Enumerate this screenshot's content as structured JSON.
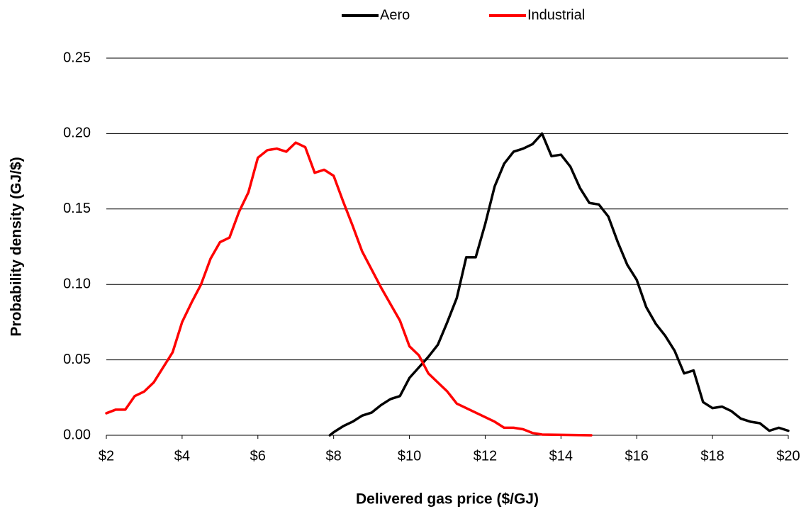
{
  "chart_data": {
    "type": "line",
    "xlabel": "Delivered gas price ($/GJ)",
    "ylabel": "Probability density (GJ/$)",
    "xlim": [
      2,
      20
    ],
    "ylim": [
      0,
      0.25
    ],
    "xticks": [
      {
        "value": 2,
        "label": "$2"
      },
      {
        "value": 4,
        "label": "$4"
      },
      {
        "value": 6,
        "label": "$6"
      },
      {
        "value": 8,
        "label": "$8"
      },
      {
        "value": 10,
        "label": "$10"
      },
      {
        "value": 12,
        "label": "$12"
      },
      {
        "value": 14,
        "label": "$14"
      },
      {
        "value": 16,
        "label": "$16"
      },
      {
        "value": 18,
        "label": "$18"
      },
      {
        "value": 20,
        "label": "$20"
      }
    ],
    "yticks": [
      {
        "value": 0,
        "label": "0.00"
      },
      {
        "value": 0.05,
        "label": "0.05"
      },
      {
        "value": 0.1,
        "label": "0.10"
      },
      {
        "value": 0.15,
        "label": "0.15"
      },
      {
        "value": 0.2,
        "label": "0.20"
      },
      {
        "value": 0.25,
        "label": "0.25"
      }
    ],
    "grid": true,
    "legend": "top",
    "series": [
      {
        "name": "Aero",
        "color": "#000000",
        "x": [
          7.9,
          8,
          8.25,
          8.5,
          8.75,
          9,
          9.25,
          9.5,
          9.75,
          10,
          10.25,
          10.5,
          10.75,
          11,
          11.25,
          11.5,
          11.75,
          12,
          12.25,
          12.5,
          12.75,
          13,
          13.25,
          13.5,
          13.75,
          14,
          14.25,
          14.5,
          14.75,
          15,
          15.25,
          15.5,
          15.75,
          16,
          16.25,
          16.5,
          16.75,
          17,
          17.25,
          17.5,
          17.75,
          18,
          18.25,
          18.5,
          18.75,
          19,
          19.25,
          19.5,
          19.75,
          20
        ],
        "values": [
          0,
          0.002,
          0.006,
          0.009,
          0.013,
          0.015,
          0.02,
          0.024,
          0.026,
          0.038,
          0.045,
          0.052,
          0.06,
          0.075,
          0.091,
          0.118,
          0.118,
          0.14,
          0.165,
          0.18,
          0.188,
          0.19,
          0.193,
          0.2,
          0.185,
          0.186,
          0.178,
          0.164,
          0.154,
          0.153,
          0.145,
          0.128,
          0.113,
          0.103,
          0.085,
          0.074,
          0.066,
          0.056,
          0.041,
          0.043,
          0.022,
          0.018,
          0.019,
          0.016,
          0.011,
          0.009,
          0.008,
          0.003,
          0.005,
          0.003
        ]
      },
      {
        "name": "Industrial",
        "color": "#ff0000",
        "x": [
          2,
          2.25,
          2.5,
          2.75,
          3,
          3.25,
          3.5,
          3.75,
          4,
          4.25,
          4.5,
          4.75,
          5,
          5.25,
          5.5,
          5.75,
          6,
          6.25,
          6.5,
          6.75,
          7,
          7.25,
          7.5,
          7.75,
          8,
          8.25,
          8.5,
          8.75,
          9,
          9.25,
          9.5,
          9.75,
          10,
          10.25,
          10.5,
          10.75,
          11,
          11.25,
          11.5,
          11.75,
          12,
          12.25,
          12.5,
          12.75,
          13,
          13.25,
          13.5,
          14,
          14.8
        ],
        "values": [
          0.0146,
          0.017,
          0.017,
          0.026,
          0.029,
          0.035,
          0.045,
          0.055,
          0.075,
          0.088,
          0.1,
          0.117,
          0.128,
          0.131,
          0.148,
          0.161,
          0.184,
          0.189,
          0.19,
          0.188,
          0.194,
          0.191,
          0.174,
          0.176,
          0.172,
          0.155,
          0.139,
          0.122,
          0.11,
          0.098,
          0.087,
          0.076,
          0.059,
          0.053,
          0.041,
          0.035,
          0.029,
          0.021,
          0.018,
          0.015,
          0.012,
          0.009,
          0.005,
          0.005,
          0.004,
          0.0015,
          0.0005,
          0.0003,
          0
        ]
      }
    ]
  }
}
